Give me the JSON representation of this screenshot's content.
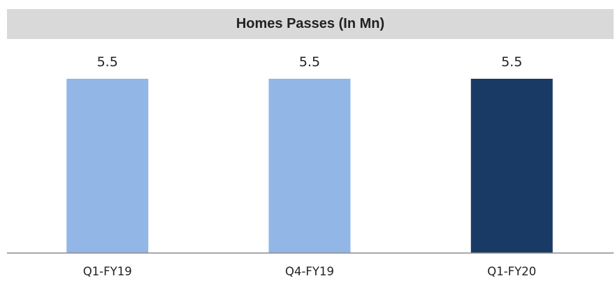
{
  "chart_data": {
    "type": "bar",
    "title": "Homes Passes (In Mn)",
    "categories": [
      "Q1-FY19",
      "Q4-FY19",
      "Q1-FY20"
    ],
    "values": [
      5.5,
      5.5,
      5.5
    ],
    "value_labels": [
      "5.5",
      "5.5",
      "5.5"
    ],
    "bar_colors": [
      "#92b7e6",
      "#92b7e6",
      "#1a3a66"
    ],
    "axis_color": "#8c8c8c",
    "ylim": [
      0,
      5.5
    ],
    "xlabel": "",
    "ylabel": "",
    "grid": false,
    "legend": "none"
  }
}
